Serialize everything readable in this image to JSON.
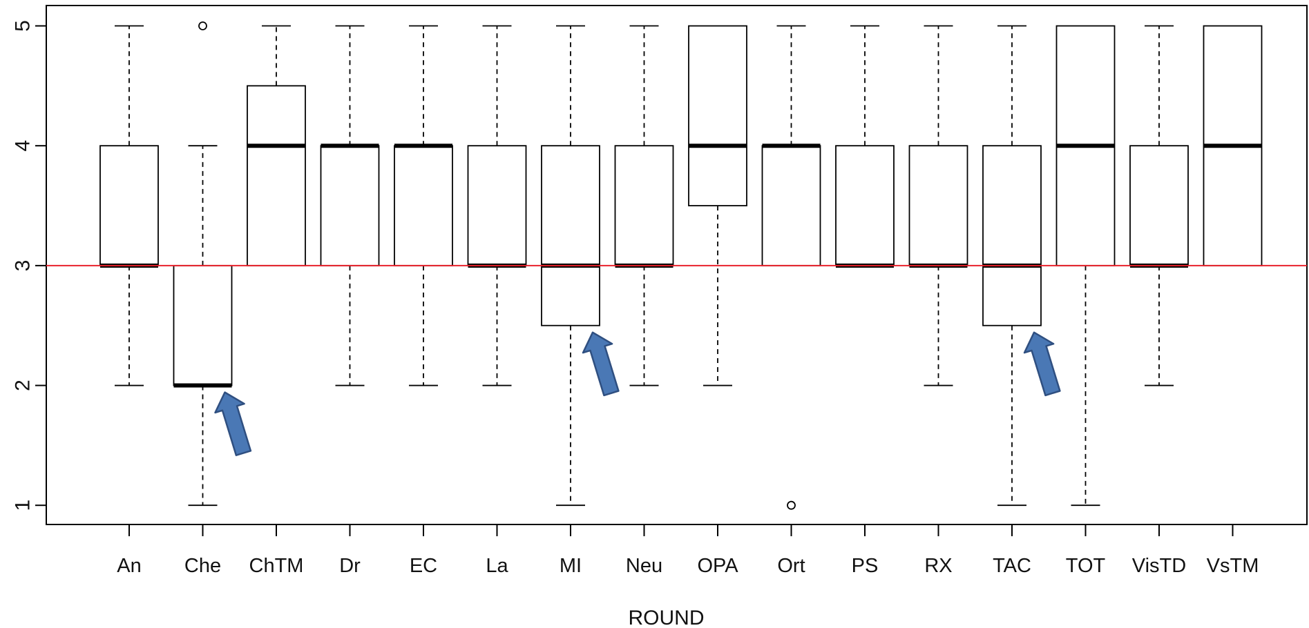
{
  "chart_data": {
    "type": "boxplot",
    "title": "",
    "xlabel": "ROUND",
    "ylabel": "",
    "ylim": [
      0.84,
      5.17
    ],
    "yticks": [
      "1",
      "2",
      "3",
      "4",
      "5"
    ],
    "categories": [
      "An",
      "Che",
      "ChTM",
      "Dr",
      "EC",
      "La",
      "MI",
      "Neu",
      "OPA",
      "Ort",
      "PS",
      "RX",
      "TAC",
      "TOT",
      "VisTD",
      "VsTM"
    ],
    "boxes": [
      {
        "label": "An",
        "whisker_low": 2,
        "q1": 3,
        "median": 3,
        "q3": 4,
        "whisker_high": 5,
        "outliers": []
      },
      {
        "label": "Che",
        "whisker_low": 1,
        "q1": 2,
        "median": 2,
        "q3": 3,
        "whisker_high": 4,
        "outliers": [
          5
        ]
      },
      {
        "label": "ChTM",
        "whisker_low": 3,
        "q1": 3,
        "median": 4,
        "q3": 4.5,
        "whisker_high": 5,
        "outliers": []
      },
      {
        "label": "Dr",
        "whisker_low": 2,
        "q1": 3,
        "median": 4,
        "q3": 4,
        "whisker_high": 5,
        "outliers": []
      },
      {
        "label": "EC",
        "whisker_low": 2,
        "q1": 3,
        "median": 4,
        "q3": 4,
        "whisker_high": 5,
        "outliers": []
      },
      {
        "label": "La",
        "whisker_low": 2,
        "q1": 3,
        "median": 3,
        "q3": 4,
        "whisker_high": 5,
        "outliers": []
      },
      {
        "label": "MI",
        "whisker_low": 1,
        "q1": 2.5,
        "median": 3,
        "q3": 4,
        "whisker_high": 5,
        "outliers": []
      },
      {
        "label": "Neu",
        "whisker_low": 2,
        "q1": 3,
        "median": 3,
        "q3": 4,
        "whisker_high": 5,
        "outliers": []
      },
      {
        "label": "OPA",
        "whisker_low": 2,
        "q1": 3.5,
        "median": 4,
        "q3": 5,
        "whisker_high": 5,
        "outliers": []
      },
      {
        "label": "Ort",
        "whisker_low": 3,
        "q1": 3,
        "median": 4,
        "q3": 4,
        "whisker_high": 5,
        "outliers": [
          1
        ]
      },
      {
        "label": "PS",
        "whisker_low": 3,
        "q1": 3,
        "median": 3,
        "q3": 4,
        "whisker_high": 5,
        "outliers": []
      },
      {
        "label": "RX",
        "whisker_low": 2,
        "q1": 3,
        "median": 3,
        "q3": 4,
        "whisker_high": 5,
        "outliers": []
      },
      {
        "label": "TAC",
        "whisker_low": 1,
        "q1": 2.5,
        "median": 3,
        "q3": 4,
        "whisker_high": 5,
        "outliers": []
      },
      {
        "label": "TOT",
        "whisker_low": 1,
        "q1": 3,
        "median": 4,
        "q3": 5,
        "whisker_high": 5,
        "outliers": []
      },
      {
        "label": "VisTD",
        "whisker_low": 2,
        "q1": 3,
        "median": 3,
        "q3": 4,
        "whisker_high": 5,
        "outliers": []
      },
      {
        "label": "VsTM",
        "whisker_low": 3,
        "q1": 3,
        "median": 4,
        "q3": 5,
        "whisker_high": 5,
        "outliers": []
      }
    ],
    "reference_line": {
      "y": 3,
      "color": "#e8202a"
    },
    "annotations": [
      {
        "type": "arrow",
        "points_to": "Che",
        "at_y": 2,
        "color": "#4a78b5"
      },
      {
        "type": "arrow",
        "points_to": "MI",
        "at_y": 2.5,
        "color": "#4a78b5"
      },
      {
        "type": "arrow",
        "points_to": "TAC",
        "at_y": 2.5,
        "color": "#4a78b5"
      }
    ],
    "grid": false,
    "legend": "none"
  }
}
